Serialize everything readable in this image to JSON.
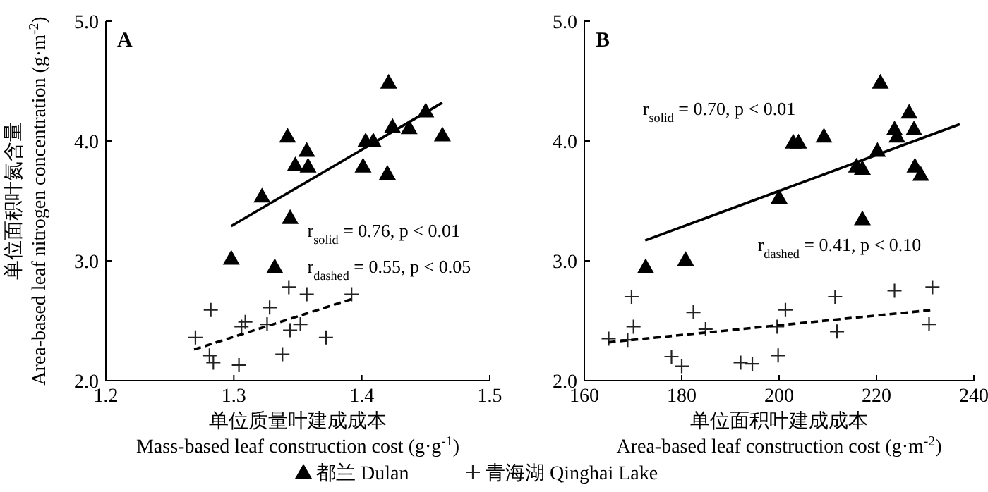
{
  "chart_data": [
    {
      "type": "scatter",
      "title": "A",
      "xlabel": "单位质量叶建成成本\nMass-based leaf construction cost (g·g$^{-1}$)",
      "ylabel": "单位面积叶氮含量\nArea-based leaf nitrogen concentration (g·m$^{-2}$)",
      "xlim": [
        1.2,
        1.5
      ],
      "ylim": [
        2.0,
        5.0
      ],
      "xticks": [
        1.2,
        1.3,
        1.4,
        1.5
      ],
      "yticks": [
        {
          "value": 2,
          "label": "2.0"
        },
        {
          "value": 3,
          "label": "3.0"
        },
        {
          "value": 4,
          "label": "4.0"
        },
        {
          "value": 5,
          "label": "5.0"
        }
      ],
      "grid": false,
      "legend": "bottom",
      "annotations": [
        "r$_{solid}$ = 0.76, p < 0.01",
        "r$_{dashed}$ = 0.55, p < 0.05"
      ],
      "series": [
        {
          "name": "都兰 Dulan",
          "type": "scatter",
          "marker": "triangle",
          "color": "#000000",
          "x": [
            1.421,
            1.45,
            1.424,
            1.437,
            1.463,
            1.342,
            1.403,
            1.409,
            1.357,
            1.348,
            1.358,
            1.401,
            1.42,
            1.322,
            1.344,
            1.298,
            1.332
          ],
          "values": [
            4.49,
            4.25,
            4.12,
            4.11,
            4.05,
            4.04,
            4.0,
            4.0,
            3.92,
            3.8,
            3.79,
            3.79,
            3.73,
            3.54,
            3.36,
            3.02,
            2.95
          ]
        },
        {
          "name": "青海湖 Qinghai Lake",
          "type": "scatter",
          "marker": "cross",
          "color": "#222222",
          "x": [
            1.343,
            1.357,
            1.392,
            1.282,
            1.328,
            1.27,
            1.306,
            1.309,
            1.326,
            1.344,
            1.352,
            1.372,
            1.281,
            1.284,
            1.304,
            1.338
          ],
          "values": [
            2.78,
            2.72,
            2.72,
            2.59,
            2.61,
            2.36,
            2.45,
            2.49,
            2.47,
            2.42,
            2.47,
            2.36,
            2.21,
            2.15,
            2.13,
            2.22
          ]
        },
        {
          "type": "line",
          "marker": "none",
          "line_style": "solid",
          "color": "#000000",
          "x": [
            1.298,
            1.463
          ],
          "values": [
            3.29,
            4.32
          ]
        },
        {
          "type": "line",
          "marker": "none",
          "line_style": "dashed",
          "color": "#000000",
          "x": [
            1.269,
            1.392
          ],
          "values": [
            2.26,
            2.68
          ]
        }
      ]
    },
    {
      "type": "scatter",
      "title": "B",
      "xlabel": "单位面积叶建成成本\nArea-based leaf construction cost (g·m$^{-2}$)",
      "xlim": [
        160,
        240
      ],
      "ylim": [
        2.0,
        5.0
      ],
      "xticks": [
        160,
        180,
        200,
        220,
        240
      ],
      "yticks": [
        {
          "value": 2,
          "label": "2.0"
        },
        {
          "value": 3,
          "label": "3.0"
        },
        {
          "value": 4,
          "label": "4.0"
        },
        {
          "value": 5,
          "label": "5.0"
        }
      ],
      "grid": false,
      "annotations": [
        "r$_{solid}$ = 0.70, p < 0.01",
        "r$_{dashed}$ = 0.41, p < 0.10"
      ],
      "series": [
        {
          "type": "scatter",
          "marker": "triangle",
          "color": "#000000",
          "x": [
            220.8,
            226.7,
            223.7,
            227.7,
            224.2,
            209.2,
            202.9,
            204.0,
            220.2,
            215.9,
            217.1,
            227.9,
            229.1,
            200.0,
            217.1,
            180.8,
            172.6
          ],
          "values": [
            4.49,
            4.24,
            4.1,
            4.1,
            4.04,
            4.04,
            3.99,
            3.99,
            3.92,
            3.79,
            3.77,
            3.79,
            3.72,
            3.53,
            3.35,
            3.01,
            2.95
          ]
        },
        {
          "type": "scatter",
          "marker": "cross",
          "color": "#222222",
          "x": [
            231.5,
            223.7,
            211.5,
            169.7,
            201.3,
            182.4,
            170.1,
            184.9,
            199.6,
            211.9,
            230.8,
            165.0,
            168.9,
            177.9,
            180.0,
            192.1,
            194.5,
            199.8
          ],
          "values": [
            2.78,
            2.75,
            2.7,
            2.7,
            2.59,
            2.57,
            2.45,
            2.43,
            2.45,
            2.41,
            2.47,
            2.35,
            2.34,
            2.2,
            2.12,
            2.15,
            2.14,
            2.21
          ]
        },
        {
          "type": "line",
          "marker": "none",
          "line_style": "solid",
          "color": "#000000",
          "x": [
            172.5,
            237.1
          ],
          "values": [
            3.17,
            4.14
          ]
        },
        {
          "type": "line",
          "marker": "none",
          "line_style": "dashed",
          "color": "#000000",
          "x": [
            165.0,
            231.5
          ],
          "values": [
            2.32,
            2.59
          ]
        }
      ]
    }
  ]
}
